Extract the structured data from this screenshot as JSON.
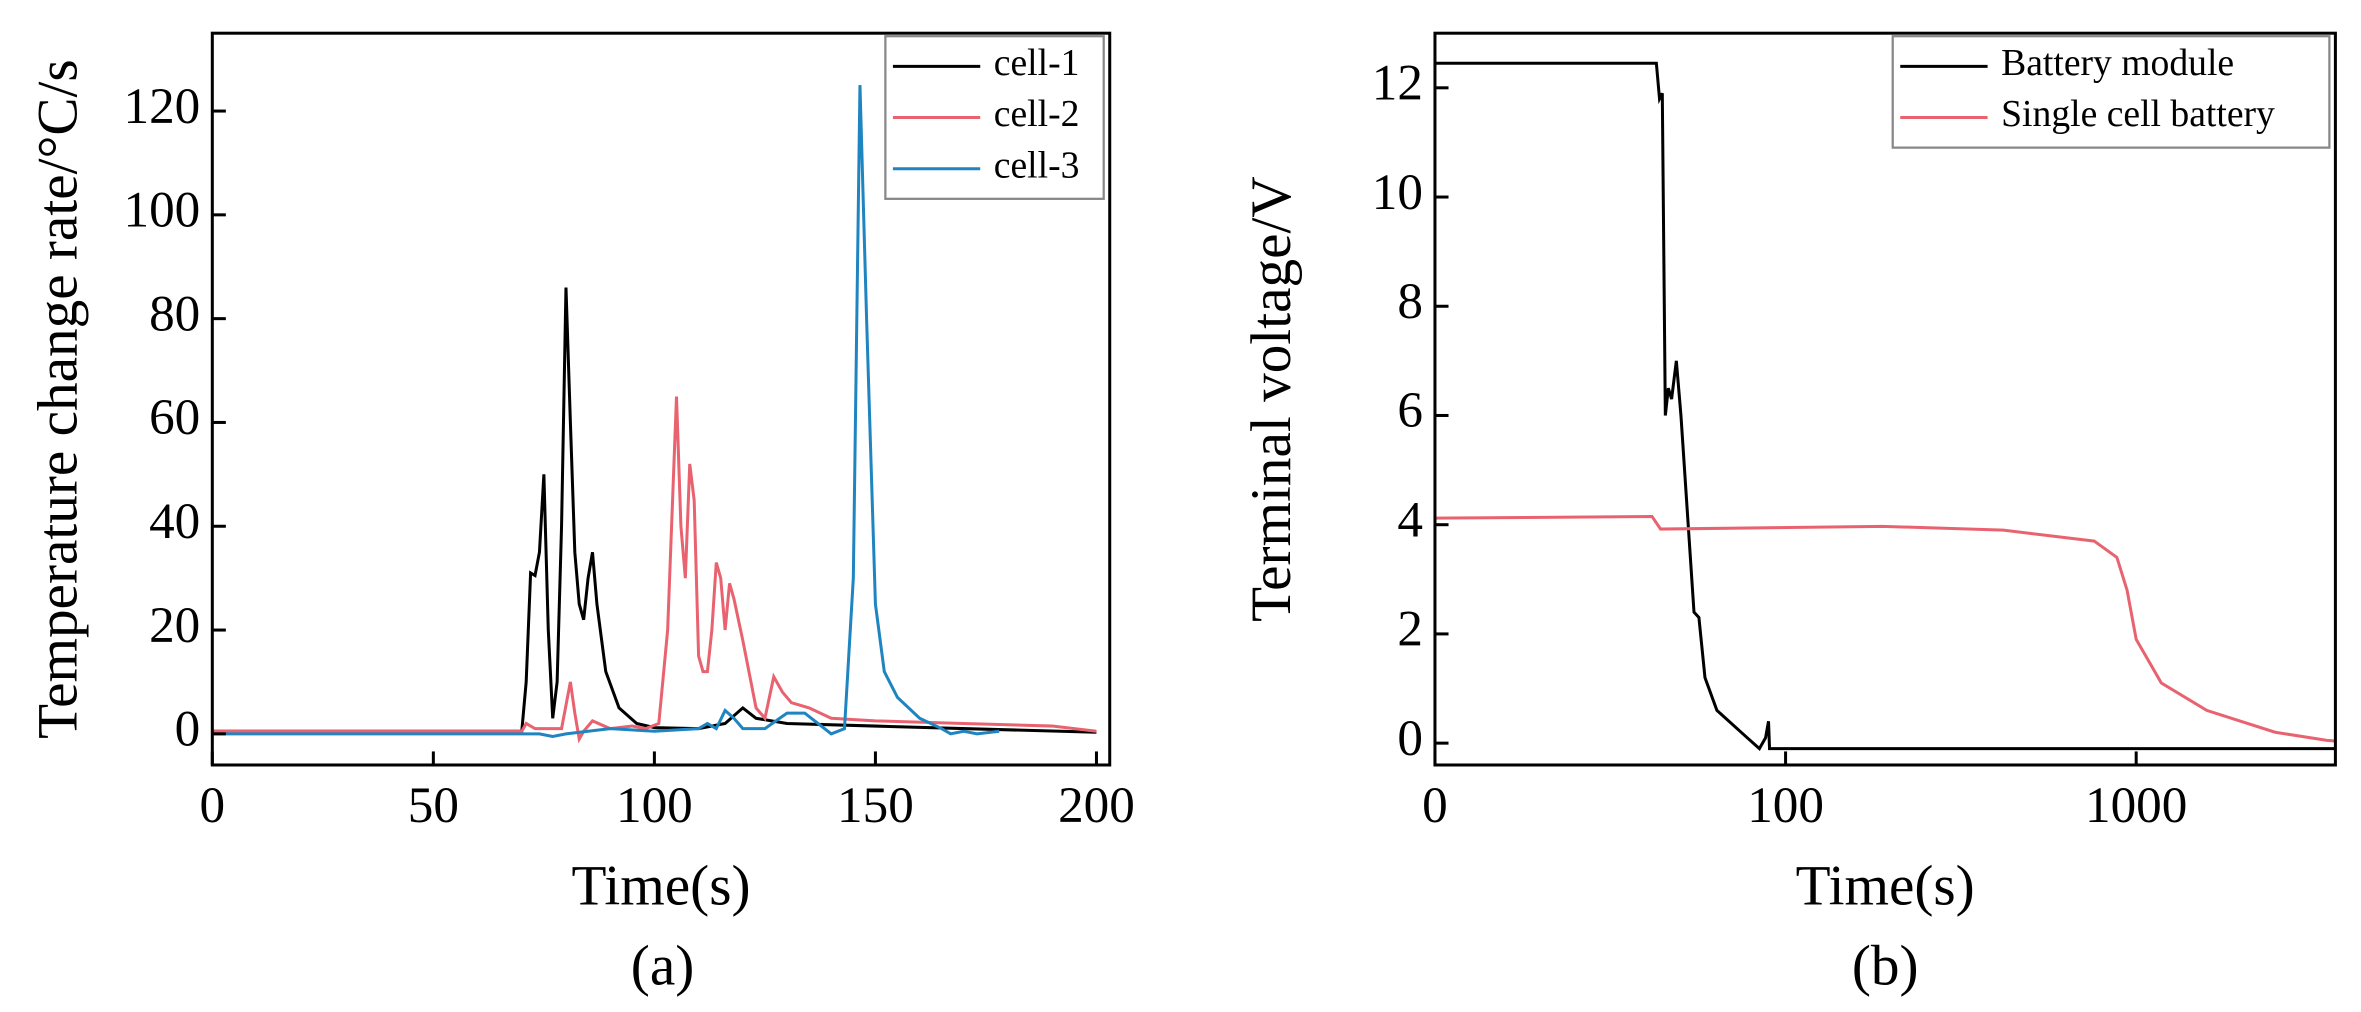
{
  "chart_data": [
    {
      "type": "line",
      "caption": "(a)",
      "xlabel": "Time(s)",
      "ylabel": "Temperature change rate/°C/s",
      "xlim": [
        0,
        203
      ],
      "ylim": [
        -6,
        135
      ],
      "xticks": [
        0,
        50,
        100,
        150,
        200
      ],
      "yticks": [
        0,
        20,
        40,
        60,
        80,
        100,
        120
      ],
      "legend": "upper right",
      "series": [
        {
          "name": "cell-1",
          "color": "#000000",
          "x": [
            0,
            69,
            70,
            71,
            72,
            73,
            74,
            75,
            76,
            77,
            78,
            79,
            80,
            81,
            82,
            83,
            84,
            85,
            86,
            87,
            89,
            92,
            96,
            100,
            110,
            116,
            120,
            123,
            130,
            150,
            200
          ],
          "values": [
            0.5,
            0.5,
            0.5,
            10,
            31,
            30.5,
            35,
            50,
            20,
            3,
            10,
            40,
            86,
            60,
            35,
            25,
            22,
            30,
            35,
            25,
            12,
            5,
            2,
            1.2,
            1,
            2,
            5,
            3,
            2,
            1.5,
            0.3
          ]
        },
        {
          "name": "cell-2",
          "color": "#e8636f",
          "x": [
            0,
            70,
            71,
            73,
            79,
            81,
            82,
            83,
            84,
            86,
            90,
            95,
            98,
            101,
            103,
            105,
            106,
            107,
            108,
            109,
            110,
            111,
            112,
            113,
            114,
            115,
            116,
            117,
            118,
            120,
            123,
            125,
            127,
            129,
            131,
            135,
            140,
            150,
            170,
            190,
            200
          ],
          "values": [
            0.5,
            0.5,
            2,
            1,
            1,
            10,
            4,
            -1,
            0.5,
            2.5,
            1,
            1.5,
            1,
            2,
            20,
            65,
            40,
            30,
            52,
            45,
            15,
            12,
            12,
            20,
            33,
            30,
            20,
            29,
            26,
            18,
            5,
            3,
            11,
            8,
            6,
            5,
            3,
            2.5,
            2,
            1.5,
            0.5
          ]
        },
        {
          "name": "cell-3",
          "color": "#1f85c1",
          "x": [
            0,
            74,
            77,
            80,
            90,
            100,
            110,
            112,
            114,
            116,
            118,
            120,
            125,
            130,
            134,
            137,
            140,
            143,
            145,
            146.5,
            148,
            150,
            152,
            155,
            160,
            165,
            167,
            170,
            173,
            178
          ],
          "values": [
            0,
            0,
            -0.5,
            0,
            1,
            0.5,
            1,
            2,
            1,
            4.5,
            3,
            1,
            1,
            4,
            4,
            2,
            0,
            1,
            30,
            125,
            80,
            25,
            12,
            7,
            3,
            1,
            0,
            0.5,
            0,
            0.5
          ]
        }
      ]
    },
    {
      "type": "line",
      "caption": "(b)",
      "xlabel": "Time(s)",
      "ylabel": "Terminal voltage/V",
      "xscale": "log",
      "xlim": [
        10,
        3700
      ],
      "ylim": [
        -0.4,
        13
      ],
      "xticks": [
        {
          "value": 10,
          "label": "0"
        },
        100,
        1000
      ],
      "yticks": [
        0,
        2,
        4,
        6,
        8,
        10,
        12
      ],
      "legend": "upper right",
      "series": [
        {
          "name": "Battery module",
          "color": "#000000",
          "x": [
            10,
            42.8,
            43.7,
            44.5,
            45.4,
            46.3,
            47.3,
            48.8,
            50.3,
            54.8,
            56.6,
            58.9,
            63.7,
            77.7,
            84.2,
            87.7,
            89.4,
            90,
            3700
          ],
          "values": [
            12.45,
            12.45,
            11.8,
            11.9,
            6,
            6.5,
            6.3,
            7,
            6,
            2.4,
            2.3,
            1.2,
            0.6,
            0.1,
            -0.1,
            0.1,
            0.4,
            -0.1,
            -0.1
          ]
        },
        {
          "name": "Single cell battery",
          "color": "#e8636f",
          "x": [
            10,
            41.6,
            44,
            189,
            418,
            759,
            881,
            942,
            1000,
            1180,
            1590,
            2490,
            3500,
            3700
          ],
          "values": [
            4.12,
            4.15,
            3.92,
            3.97,
            3.9,
            3.7,
            3.4,
            2.8,
            1.9,
            1.1,
            0.6,
            0.2,
            0.05,
            0.04
          ]
        }
      ]
    }
  ]
}
